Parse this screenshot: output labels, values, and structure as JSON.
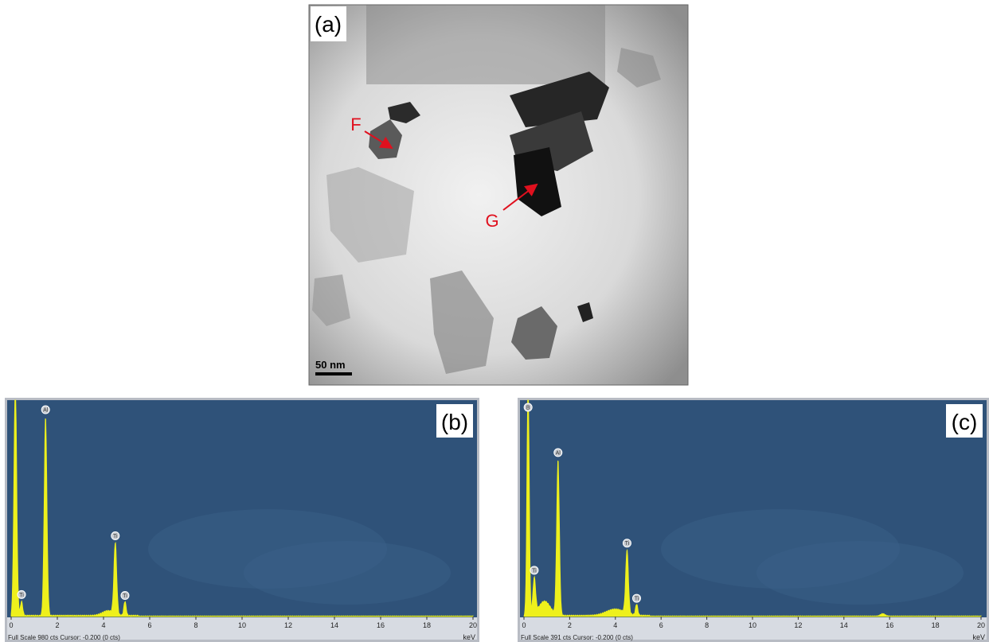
{
  "panel_a": {
    "label": "(a)",
    "markers": [
      "F",
      "G"
    ],
    "scale_bar": "50 nm"
  },
  "panel_b": {
    "label": "(b)",
    "peaks": [
      "Ti",
      "Al",
      "Ti",
      "Ti"
    ],
    "x_ticks": [
      0,
      2,
      4,
      6,
      8,
      10,
      12,
      14,
      16,
      18,
      20
    ],
    "unit": "keV",
    "status": "Full Scale 980 cts Cursor: -0.200  (0 cts)"
  },
  "panel_c": {
    "label": "(c)",
    "peaks": [
      "B",
      "Ti",
      "Al",
      "Ti",
      "Ti"
    ],
    "x_ticks": [
      0,
      2,
      4,
      6,
      8,
      10,
      12,
      14,
      16,
      18,
      20
    ],
    "unit": "keV",
    "status": "Full Scale 391 cts Cursor: -0.200  (0 cts)"
  }
}
